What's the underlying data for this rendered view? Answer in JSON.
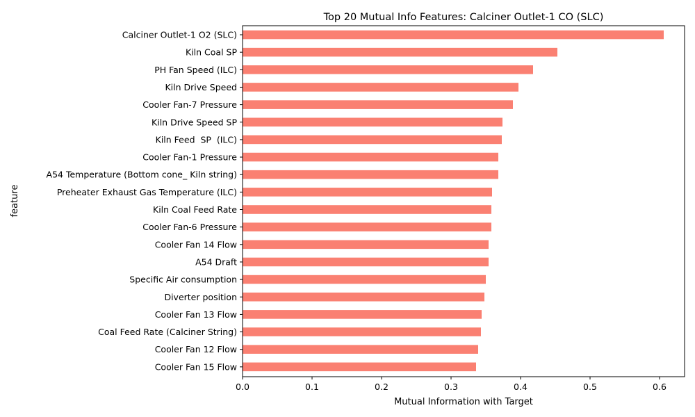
{
  "chart_data": {
    "type": "bar",
    "orientation": "horizontal",
    "title": "Top 20 Mutual Info Features: Calciner Outlet-1 CO (SLC)",
    "xlabel": "Mutual Information with Target",
    "ylabel": "feature",
    "xlim": [
      0,
      0.636
    ],
    "xticks": [
      "0.0",
      "0.1",
      "0.2",
      "0.3",
      "0.4",
      "0.5",
      "0.6"
    ],
    "bar_color": "#fa8072",
    "grid": false,
    "categories": [
      "Calciner Outlet-1 O2 (SLC)",
      "Kiln Coal SP",
      "PH Fan Speed (ILC)",
      "Kiln Drive Speed",
      "Cooler Fan-7 Pressure",
      "Kiln Drive Speed SP",
      "Kiln Feed  SP  (ILC)",
      "Cooler Fan-1 Pressure",
      "A54 Temperature (Bottom cone_ Kiln string)",
      "Preheater Exhaust Gas Temperature (ILC)",
      "Kiln Coal Feed Rate",
      "Cooler Fan-6 Pressure",
      "Cooler Fan 14 Flow",
      "A54 Draft",
      "Specific Air consumption",
      "Diverter position",
      "Cooler Fan 13 Flow",
      "Coal Feed Rate (Calciner String)",
      "Cooler Fan 12 Flow",
      "Cooler Fan 15 Flow"
    ],
    "values": [
      0.606,
      0.453,
      0.418,
      0.397,
      0.389,
      0.374,
      0.373,
      0.368,
      0.368,
      0.359,
      0.358,
      0.358,
      0.354,
      0.354,
      0.35,
      0.348,
      0.344,
      0.343,
      0.339,
      0.336
    ]
  }
}
